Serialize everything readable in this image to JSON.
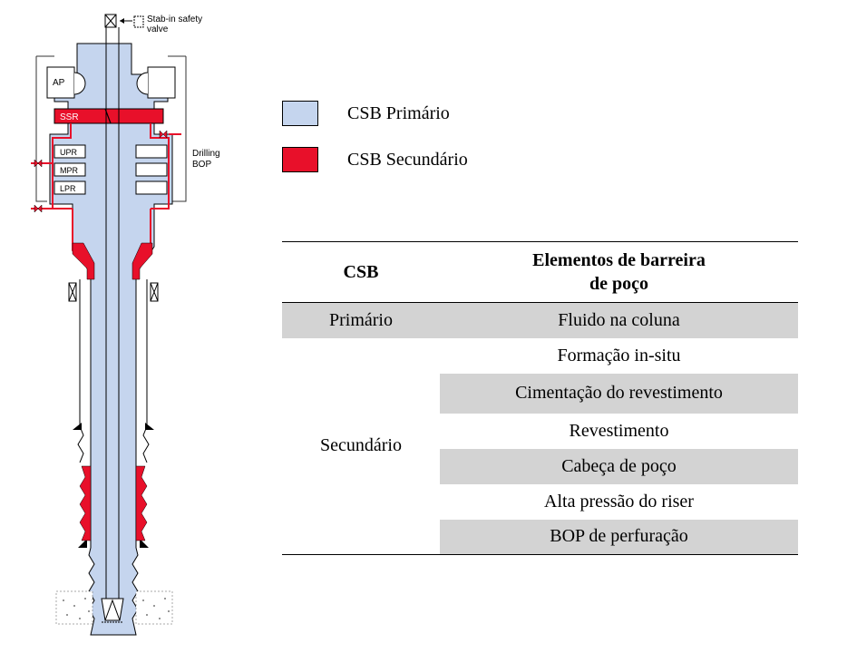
{
  "diagram": {
    "labels": {
      "stab_in_valve": [
        "Stab-in safety",
        "valve"
      ],
      "ap": "AP",
      "ssr": "SSR",
      "upr": "UPR",
      "mpr": "MPR",
      "lpr": "LPR",
      "drilling_bop": [
        "Drilling",
        "BOP"
      ]
    },
    "colors": {
      "primary_fill": "#c5d5ee",
      "secondary_fill": "#e8102a",
      "outline": "#000000",
      "table_shade": "#d3d3d3"
    }
  },
  "legend": [
    {
      "label": "CSB Primário",
      "color": "#c5d5ee"
    },
    {
      "label": "CSB Secundário",
      "color": "#e8102a"
    }
  ],
  "table": {
    "headers": {
      "col1": "CSB",
      "col2_line1": "Elementos de barreira",
      "col2_line2": "de poço"
    },
    "primary": {
      "group": "Primário",
      "elements": [
        "Fluido na coluna"
      ]
    },
    "secondary": {
      "group": "Secundário",
      "elements": [
        "Formação in-situ",
        "Cimentação do revestimento",
        "Revestimento",
        "Cabeça de poço",
        "Alta pressão do riser",
        "BOP de perfuração"
      ]
    }
  }
}
